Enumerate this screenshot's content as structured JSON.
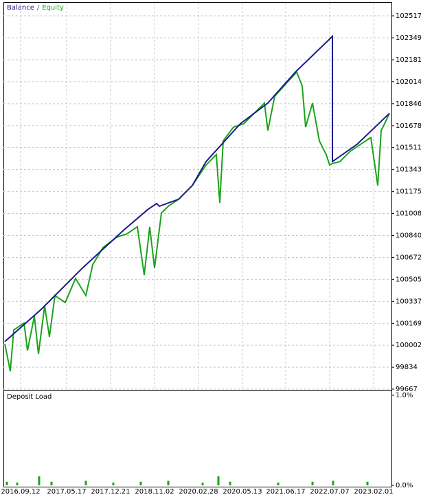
{
  "chart_data": [
    {
      "type": "line",
      "legend_separator": "/",
      "xlim": [
        0,
        565
      ],
      "xticks": [
        {
          "value": 25,
          "label": "2016.09.12"
        },
        {
          "value": 92,
          "label": "2017.05.17"
        },
        {
          "value": 156,
          "label": "2017.12.21"
        },
        {
          "value": 220,
          "label": "2018.11.02"
        },
        {
          "value": 284,
          "label": "2020.02.28"
        },
        {
          "value": 348,
          "label": "2020.05.13"
        },
        {
          "value": 411,
          "label": "2021.06.17"
        },
        {
          "value": 475,
          "label": "2022.07.07"
        },
        {
          "value": 539,
          "label": "2023.02.01"
        }
      ],
      "ylim": [
        99667,
        102517
      ],
      "yticks": [
        102517,
        102349,
        102181,
        102014,
        101846,
        101678,
        101511,
        101343,
        101175,
        101008,
        100840,
        100672,
        100505,
        100337,
        100169,
        100002,
        99834,
        99667
      ],
      "grid": true,
      "series": [
        {
          "name": "Equity",
          "color": "#1aa31a",
          "x": [
            2,
            10,
            15,
            30,
            35,
            45,
            51,
            60,
            67,
            75,
            90,
            105,
            120,
            130,
            145,
            165,
            180,
            195,
            205,
            213,
            220,
            230,
            240,
            255,
            275,
            295,
            310,
            315,
            320,
            335,
            350,
            365,
            380,
            385,
            395,
            415,
            427,
            435,
            440,
            450,
            460,
            470,
            475,
            479,
            490,
            505,
            520,
            535,
            545,
            550,
            555,
            562
          ],
          "values": [
            100013,
            99803,
            100118,
            100171,
            99961,
            100223,
            99935,
            100302,
            100066,
            100381,
            100328,
            100512,
            100381,
            100617,
            100748,
            100827,
            100853,
            100906,
            100538,
            100906,
            100591,
            101011,
            101063,
            101116,
            101221,
            101378,
            101457,
            101089,
            101562,
            101667,
            101693,
            101772,
            101851,
            101641,
            101903,
            102019,
            102087,
            101982,
            101667,
            101851,
            101562,
            101457,
            101378,
            101389,
            101404,
            101483,
            101536,
            101588,
            101221,
            101641,
            101693,
            101772
          ]
        },
        {
          "name": "Balance",
          "color": "#1a1a8c",
          "x": [
            2,
            55,
            115,
            175,
            210,
            223,
            227,
            255,
            275,
            295,
            345,
            385,
            425,
            479,
            479,
            515,
            562
          ],
          "values": [
            100029,
            100276,
            100591,
            100880,
            101037,
            101084,
            101063,
            101116,
            101221,
            101404,
            101693,
            101851,
            102087,
            102360,
            101404,
            101536,
            101772
          ]
        }
      ]
    },
    {
      "type": "bar",
      "title": "Deposit Load",
      "color": "#1aa31a",
      "xlim": [
        0,
        565
      ],
      "x": [
        5,
        20,
        52,
        70,
        120,
        160,
        200,
        240,
        290,
        313,
        330,
        400,
        450,
        480,
        530
      ],
      "values": [
        0.04,
        0.03,
        0.1,
        0.04,
        0.05,
        0.03,
        0.04,
        0.05,
        0.03,
        0.1,
        0.04,
        0.03,
        0.04,
        0.05,
        0.04
      ],
      "ylim": [
        0,
        1
      ],
      "yticks": [
        {
          "value": 1,
          "label": "1.0%"
        },
        {
          "value": 0,
          "label": "0.0%"
        }
      ]
    }
  ]
}
